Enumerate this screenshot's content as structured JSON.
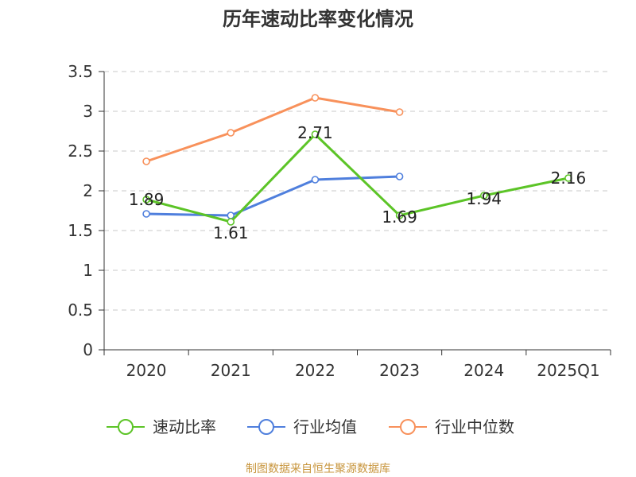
{
  "chart_data": {
    "type": "line",
    "title": "历年速动比率变化情况",
    "categories": [
      "2020",
      "2021",
      "2022",
      "2023",
      "2024",
      "2025Q1"
    ],
    "ylim": [
      0,
      3.5
    ],
    "yticks": [
      "0",
      "0.5",
      "1",
      "1.5",
      "2",
      "2.5",
      "3",
      "3.5"
    ],
    "grid": true,
    "legend_position": "bottom",
    "series": [
      {
        "name": "速动比率",
        "color": "#5cc427",
        "values": [
          1.89,
          1.61,
          2.71,
          1.69,
          1.94,
          2.16
        ],
        "labels": [
          "1.89",
          "1.61",
          "2.71",
          "1.69",
          "1.94",
          "2.16"
        ]
      },
      {
        "name": "行业均值",
        "color": "#4f7fdd",
        "values": [
          1.71,
          1.69,
          2.14,
          2.18,
          null,
          null
        ]
      },
      {
        "name": "行业中位数",
        "color": "#f8915b",
        "values": [
          2.37,
          2.73,
          3.17,
          2.99,
          null,
          null
        ]
      }
    ]
  },
  "source_note": "制图数据来自恒生聚源数据库"
}
